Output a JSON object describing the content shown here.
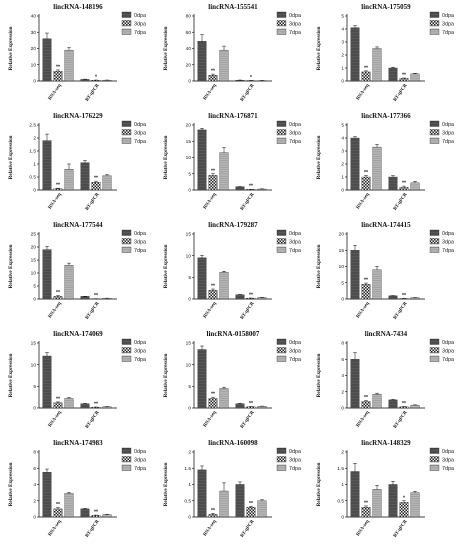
{
  "legend_labels": [
    "0dpa",
    "3dpa",
    "7dpa"
  ],
  "y_axis_label": "Relative Expression",
  "category_labels": [
    "RNA-seq",
    "RT-qPCR"
  ],
  "chart_data": [
    {
      "type": "bar",
      "title": "lincRNA-148196",
      "ylabel": "Relative Expression",
      "categories": [
        "RNA-seq",
        "RT-qPCR"
      ],
      "ylim": [
        0,
        40
      ],
      "yticks": [
        0,
        10,
        20,
        30,
        40
      ],
      "series": [
        {
          "name": "0dpa",
          "values": [
            26,
            1
          ],
          "errors": [
            3.5,
            0.15
          ]
        },
        {
          "name": "3dpa",
          "values": [
            6,
            0.5
          ],
          "errors": [
            0.8,
            0.1
          ]
        },
        {
          "name": "7dpa",
          "values": [
            19,
            0.5
          ],
          "errors": [
            1.5,
            0.1
          ]
        }
      ],
      "annotations": [
        {
          "category": "RNA-seq",
          "series": "3dpa",
          "text": "**"
        },
        {
          "category": "RT-qPCR",
          "series": "3dpa",
          "text": "*"
        }
      ]
    },
    {
      "type": "bar",
      "title": "lincRNA-155541",
      "ylabel": "Relative Expression",
      "categories": [
        "RNA-seq",
        "RT-qPCR"
      ],
      "ylim": [
        0,
        80
      ],
      "yticks": [
        0,
        20,
        40,
        60,
        80
      ],
      "series": [
        {
          "name": "0dpa",
          "values": [
            49,
            1
          ],
          "errors": [
            8,
            0.2
          ]
        },
        {
          "name": "3dpa",
          "values": [
            7,
            0.6
          ],
          "errors": [
            1.5,
            0.1
          ]
        },
        {
          "name": "7dpa",
          "values": [
            38,
            0.5
          ],
          "errors": [
            5,
            0.1
          ]
        }
      ],
      "annotations": [
        {
          "category": "RNA-seq",
          "series": "3dpa",
          "text": "**"
        },
        {
          "category": "RT-qPCR",
          "series": "3dpa",
          "text": "*"
        }
      ]
    },
    {
      "type": "bar",
      "title": "lincRNA-175059",
      "ylabel": "Relative Expression",
      "categories": [
        "RNA-seq",
        "RT-qPCR"
      ],
      "ylim": [
        0,
        5
      ],
      "yticks": [
        0,
        1,
        2,
        3,
        4,
        5
      ],
      "series": [
        {
          "name": "0dpa",
          "values": [
            4.1,
            1.0
          ],
          "errors": [
            0.15,
            0.05
          ]
        },
        {
          "name": "3dpa",
          "values": [
            0.7,
            0.2
          ],
          "errors": [
            0.08,
            0.03
          ]
        },
        {
          "name": "7dpa",
          "values": [
            2.5,
            0.55
          ],
          "errors": [
            0.12,
            0.04
          ]
        }
      ],
      "annotations": [
        {
          "category": "RNA-seq",
          "series": "3dpa",
          "text": "**"
        },
        {
          "category": "RT-qPCR",
          "series": "3dpa",
          "text": "**"
        }
      ]
    },
    {
      "type": "bar",
      "title": "lincRNA-176229",
      "ylabel": "Relative Expression",
      "categories": [
        "RNA-seq",
        "RT-qPCR"
      ],
      "ylim": [
        0,
        2.5
      ],
      "yticks": [
        0,
        0.5,
        1.0,
        1.5,
        2.0,
        2.5
      ],
      "series": [
        {
          "name": "0dpa",
          "values": [
            1.9,
            1.05
          ],
          "errors": [
            0.25,
            0.08
          ]
        },
        {
          "name": "3dpa",
          "values": [
            0.05,
            0.3
          ],
          "errors": [
            0.02,
            0.04
          ]
        },
        {
          "name": "7dpa",
          "values": [
            0.8,
            0.55
          ],
          "errors": [
            0.2,
            0.04
          ]
        }
      ],
      "annotations": [
        {
          "category": "RNA-seq",
          "series": "3dpa",
          "text": "**"
        },
        {
          "category": "RT-qPCR",
          "series": "3dpa",
          "text": "**"
        }
      ]
    },
    {
      "type": "bar",
      "title": "lincRNA-176871",
      "ylabel": "Relative Expression",
      "categories": [
        "RNA-seq",
        "RT-qPCR"
      ],
      "ylim": [
        0,
        20
      ],
      "yticks": [
        0,
        5,
        10,
        15,
        20
      ],
      "series": [
        {
          "name": "0dpa",
          "values": [
            18.5,
            1.0
          ],
          "errors": [
            0.5,
            0.05
          ]
        },
        {
          "name": "3dpa",
          "values": [
            4.5,
            0.2
          ],
          "errors": [
            0.5,
            0.04
          ]
        },
        {
          "name": "7dpa",
          "values": [
            11.5,
            0.3
          ],
          "errors": [
            1.5,
            0.05
          ]
        }
      ],
      "annotations": [
        {
          "category": "RNA-seq",
          "series": "3dpa",
          "text": "**"
        },
        {
          "category": "RT-qPCR",
          "series": "3dpa",
          "text": "**"
        }
      ]
    },
    {
      "type": "bar",
      "title": "lincRNA-177366",
      "ylabel": "Relative Expression",
      "categories": [
        "RNA-seq",
        "RT-qPCR"
      ],
      "ylim": [
        0,
        5
      ],
      "yticks": [
        0,
        1,
        2,
        3,
        4,
        5
      ],
      "series": [
        {
          "name": "0dpa",
          "values": [
            4.0,
            1.0
          ],
          "errors": [
            0.1,
            0.1
          ]
        },
        {
          "name": "3dpa",
          "values": [
            1.0,
            0.2
          ],
          "errors": [
            0.12,
            0.1
          ]
        },
        {
          "name": "7dpa",
          "values": [
            3.3,
            0.55
          ],
          "errors": [
            0.2,
            0.12
          ]
        }
      ],
      "annotations": [
        {
          "category": "RNA-seq",
          "series": "3dpa",
          "text": "**"
        },
        {
          "category": "RT-qPCR",
          "series": "3dpa",
          "text": "**"
        }
      ]
    },
    {
      "type": "bar",
      "title": "lincRNA-177544",
      "ylabel": "Relative Expression",
      "categories": [
        "RNA-seq",
        "RT-qPCR"
      ],
      "ylim": [
        0,
        25
      ],
      "yticks": [
        0,
        5,
        10,
        15,
        20,
        25
      ],
      "series": [
        {
          "name": "0dpa",
          "values": [
            19,
            1.0
          ],
          "errors": [
            1.2,
            0.05
          ]
        },
        {
          "name": "3dpa",
          "values": [
            1.0,
            0.1
          ],
          "errors": [
            0.3,
            0.02
          ]
        },
        {
          "name": "7dpa",
          "values": [
            13,
            0.3
          ],
          "errors": [
            0.8,
            0.04
          ]
        }
      ],
      "annotations": [
        {
          "category": "RNA-seq",
          "series": "3dpa",
          "text": "**"
        },
        {
          "category": "RT-qPCR",
          "series": "3dpa",
          "text": "**"
        }
      ]
    },
    {
      "type": "bar",
      "title": "lincRNA-179287",
      "ylabel": "Relative Expression",
      "categories": [
        "RNA-seq",
        "RT-qPCR"
      ],
      "ylim": [
        0,
        15
      ],
      "yticks": [
        0,
        5,
        10,
        15
      ],
      "series": [
        {
          "name": "0dpa",
          "values": [
            9.5,
            1.0
          ],
          "errors": [
            0.6,
            0.05
          ]
        },
        {
          "name": "3dpa",
          "values": [
            2.0,
            0.2
          ],
          "errors": [
            0.3,
            0.03
          ]
        },
        {
          "name": "7dpa",
          "values": [
            6.2,
            0.35
          ],
          "errors": [
            0.2,
            0.04
          ]
        }
      ],
      "annotations": [
        {
          "category": "RNA-seq",
          "series": "3dpa",
          "text": "**"
        },
        {
          "category": "RT-qPCR",
          "series": "3dpa",
          "text": "**"
        }
      ]
    },
    {
      "type": "bar",
      "title": "lincRNA-174415",
      "ylabel": "Relative Expression",
      "categories": [
        "RNA-seq",
        "RT-qPCR"
      ],
      "ylim": [
        0,
        20
      ],
      "yticks": [
        0,
        5,
        10,
        15,
        20
      ],
      "series": [
        {
          "name": "0dpa",
          "values": [
            15,
            1.0
          ],
          "errors": [
            1.5,
            0.05
          ]
        },
        {
          "name": "3dpa",
          "values": [
            4.5,
            0.15
          ],
          "errors": [
            0.4,
            0.03
          ]
        },
        {
          "name": "7dpa",
          "values": [
            9,
            0.4
          ],
          "errors": [
            1.0,
            0.04
          ]
        }
      ],
      "annotations": [
        {
          "category": "RNA-seq",
          "series": "3dpa",
          "text": "**"
        },
        {
          "category": "RT-qPCR",
          "series": "3dpa",
          "text": "**"
        }
      ]
    },
    {
      "type": "bar",
      "title": "lincRNA-174069",
      "ylabel": "Relative Expression",
      "categories": [
        "RNA-seq",
        "RT-qPCR"
      ],
      "ylim": [
        0,
        15
      ],
      "yticks": [
        0,
        5,
        10,
        15
      ],
      "series": [
        {
          "name": "0dpa",
          "values": [
            12,
            1.0
          ],
          "errors": [
            0.8,
            0.05
          ]
        },
        {
          "name": "3dpa",
          "values": [
            1.2,
            0.2
          ],
          "errors": [
            0.2,
            0.03
          ]
        },
        {
          "name": "7dpa",
          "values": [
            2.2,
            0.3
          ],
          "errors": [
            0.2,
            0.04
          ]
        }
      ],
      "annotations": [
        {
          "category": "RNA-seq",
          "series": "3dpa",
          "text": "**"
        },
        {
          "category": "RT-qPCR",
          "series": "3dpa",
          "text": "**"
        }
      ]
    },
    {
      "type": "bar",
      "title": "lincRNA-0158007",
      "ylabel": "Relative Expression",
      "categories": [
        "RNA-seq",
        "RT-qPCR"
      ],
      "ylim": [
        0,
        15
      ],
      "yticks": [
        0,
        5,
        10,
        15
      ],
      "series": [
        {
          "name": "0dpa",
          "values": [
            13.5,
            1.0
          ],
          "errors": [
            0.8,
            0.05
          ]
        },
        {
          "name": "3dpa",
          "values": [
            2.2,
            0.3
          ],
          "errors": [
            0.3,
            0.04
          ]
        },
        {
          "name": "7dpa",
          "values": [
            4.5,
            0.4
          ],
          "errors": [
            0.3,
            0.04
          ]
        }
      ],
      "annotations": [
        {
          "category": "RNA-seq",
          "series": "3dpa",
          "text": "**"
        },
        {
          "category": "RT-qPCR",
          "series": "3dpa",
          "text": "**"
        }
      ]
    },
    {
      "type": "bar",
      "title": "lincRNA-7434",
      "ylabel": "Relative Expression",
      "categories": [
        "RNA-seq",
        "RT-qPCR"
      ],
      "ylim": [
        0,
        8
      ],
      "yticks": [
        0,
        2,
        4,
        6,
        8
      ],
      "series": [
        {
          "name": "0dpa",
          "values": [
            6.0,
            1.0
          ],
          "errors": [
            0.8,
            0.05
          ]
        },
        {
          "name": "3dpa",
          "values": [
            0.8,
            0.15
          ],
          "errors": [
            0.1,
            0.03
          ]
        },
        {
          "name": "7dpa",
          "values": [
            1.7,
            0.35
          ],
          "errors": [
            0.12,
            0.04
          ]
        }
      ],
      "annotations": [
        {
          "category": "RNA-seq",
          "series": "3dpa",
          "text": "**"
        },
        {
          "category": "RT-qPCR",
          "series": "3dpa",
          "text": "**"
        }
      ]
    },
    {
      "type": "bar",
      "title": "lincRNA-174983",
      "ylabel": "Relative Expression",
      "categories": [
        "RNA-seq",
        "RT-qPCR"
      ],
      "ylim": [
        0,
        8
      ],
      "yticks": [
        0,
        2,
        4,
        6,
        8
      ],
      "series": [
        {
          "name": "0dpa",
          "values": [
            5.5,
            1.0
          ],
          "errors": [
            0.4,
            0.05
          ]
        },
        {
          "name": "3dpa",
          "values": [
            1.0,
            0.2
          ],
          "errors": [
            0.15,
            0.04
          ]
        },
        {
          "name": "7dpa",
          "values": [
            2.9,
            0.3
          ],
          "errors": [
            0.12,
            0.04
          ]
        }
      ],
      "annotations": [
        {
          "category": "RNA-seq",
          "series": "3dpa",
          "text": "**"
        },
        {
          "category": "RT-qPCR",
          "series": "3dpa",
          "text": "**"
        }
      ]
    },
    {
      "type": "bar",
      "title": "lincRNA-160098",
      "ylabel": "Relative Expression",
      "categories": [
        "RNA-seq",
        "RT-qPCR"
      ],
      "ylim": [
        0,
        2.0
      ],
      "yticks": [
        0,
        0.5,
        1.0,
        1.5,
        2.0
      ],
      "series": [
        {
          "name": "0dpa",
          "values": [
            1.45,
            1.0
          ],
          "errors": [
            0.12,
            0.08
          ]
        },
        {
          "name": "3dpa",
          "values": [
            0.08,
            0.3
          ],
          "errors": [
            0.03,
            0.03
          ]
        },
        {
          "name": "7dpa",
          "values": [
            0.8,
            0.5
          ],
          "errors": [
            0.25,
            0.03
          ]
        }
      ],
      "annotations": [
        {
          "category": "RNA-seq",
          "series": "3dpa",
          "text": "**"
        },
        {
          "category": "RT-qPCR",
          "series": "3dpa",
          "text": "**"
        }
      ]
    },
    {
      "type": "bar",
      "title": "lincRNA-148329",
      "ylabel": "Relative Expression",
      "categories": [
        "RNA-seq",
        "RT-qPCR"
      ],
      "ylim": [
        0,
        2.0
      ],
      "yticks": [
        0,
        0.5,
        1.0,
        1.5,
        2.0
      ],
      "series": [
        {
          "name": "0dpa",
          "values": [
            1.4,
            1.0
          ],
          "errors": [
            0.25,
            0.1
          ]
        },
        {
          "name": "3dpa",
          "values": [
            0.3,
            0.45
          ],
          "errors": [
            0.04,
            0.05
          ]
        },
        {
          "name": "7dpa",
          "values": [
            0.85,
            0.75
          ],
          "errors": [
            0.12,
            0.04
          ]
        }
      ],
      "annotations": [
        {
          "category": "RNA-seq",
          "series": "3dpa",
          "text": "**"
        },
        {
          "category": "RT-qPCR",
          "series": "3dpa",
          "text": "*"
        }
      ]
    }
  ]
}
